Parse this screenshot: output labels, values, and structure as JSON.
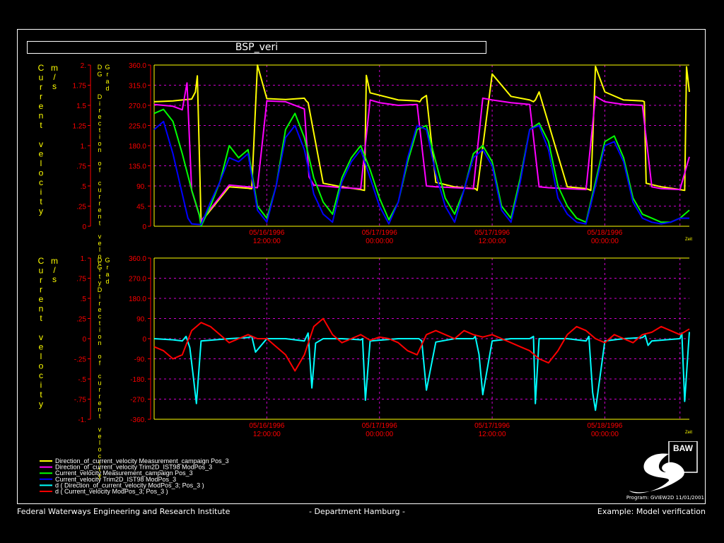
{
  "title": "BSP_veri",
  "footer": {
    "left": "Federal Waterways Engineering and Research Institute",
    "center": "- Department Hamburg -",
    "right": "Example: Model verification"
  },
  "program_line": "Program: GVIEW2D   11/01/2001",
  "logo_text": "BAW",
  "colors": {
    "yellow": "#ffff00",
    "magenta": "#ff00ff",
    "green": "#00ff00",
    "blue": "#0000ff",
    "cyan": "#00ffff",
    "red": "#ff0000",
    "grid": "#cc00cc",
    "frame": "#ffff00",
    "axis_red": "#ff0000"
  },
  "chart_data": [
    {
      "type": "line",
      "left_axis_label": "Current velocity",
      "left_axis_unit": "m/s",
      "right_axis_label": "Direction of current velocity",
      "right_axis_unit": "Grad",
      "right_axis_unit_prefix": "DG",
      "left_ticks": [
        "2.",
        "1.75",
        "1.5",
        "1.25",
        "1.",
        ".75",
        ".5",
        ".25",
        "0"
      ],
      "right_ticks": [
        "360.0",
        "315.0",
        "270.0",
        "225.0",
        "180.0",
        "135.0",
        "90.",
        "45.",
        "0"
      ],
      "ylim_left": [
        0,
        2
      ],
      "ylim_right": [
        0,
        360
      ],
      "xlim_hours": [
        0,
        57
      ],
      "x_ticks": [
        {
          "date": "05/16/1996",
          "time": "12:00:00"
        },
        {
          "date": "05/17/1996",
          "time": "00:00:00"
        },
        {
          "date": "05/17/1996",
          "time": "12:00:00"
        },
        {
          "date": "05/18/1996",
          "time": "00:00:00"
        }
      ],
      "x_axis_tag": "Zeit",
      "grid": true,
      "series": [
        {
          "name": "Direction_of_current_velocity Measurement_campaign Pos_3",
          "axis": "right",
          "color": "yellow",
          "x": [
            0,
            2,
            4,
            4.4,
            4.6,
            5,
            8,
            10,
            10.2,
            10.4,
            11,
            12,
            14,
            16,
            16.2,
            16.4,
            18,
            20,
            22,
            22.4,
            22.6,
            23,
            26,
            28,
            28.3,
            28.5,
            29,
            30,
            32,
            34,
            34.2,
            34.4,
            36,
            38,
            40,
            40.4,
            40.6,
            41,
            44,
            46,
            46.3,
            46.5,
            47,
            48,
            50,
            52,
            52.2,
            52.4,
            54,
            56,
            56.5,
            56.7,
            57
          ],
          "y": [
            278,
            280,
            284,
            300,
            336,
            10,
            88,
            85,
            84,
            84,
            360,
            285,
            283,
            286,
            280,
            276,
            96,
            88,
            82,
            80,
            337,
            298,
            282,
            280,
            278,
            285,
            292,
            98,
            88,
            84,
            84,
            80,
            340,
            290,
            282,
            278,
            282,
            300,
            88,
            84,
            82,
            80,
            357,
            300,
            282,
            280,
            278,
            96,
            88,
            82,
            80,
            356,
            300
          ]
        },
        {
          "name": "Direction_of_current_velocity Trim2D_IST98 ModPos_3",
          "axis": "right",
          "color": "magenta",
          "x": [
            0,
            2,
            3,
            3.5,
            4,
            5,
            8,
            10,
            11,
            12,
            14,
            16,
            16.5,
            17,
            18,
            20,
            22,
            23,
            24,
            26,
            28,
            29,
            30,
            32,
            34,
            35,
            36,
            38,
            40,
            41,
            42,
            44,
            46,
            47,
            48,
            50,
            52,
            53,
            54,
            56,
            57
          ],
          "y": [
            272,
            268,
            260,
            320,
            80,
            12,
            92,
            88,
            86,
            280,
            278,
            262,
            110,
            92,
            90,
            86,
            84,
            282,
            276,
            270,
            272,
            90,
            88,
            86,
            84,
            286,
            282,
            276,
            272,
            88,
            86,
            84,
            82,
            290,
            278,
            272,
            270,
            88,
            84,
            82,
            155
          ]
        },
        {
          "name": "Current_velocity Measurement_campaign Pos_3",
          "axis": "left",
          "color": "green",
          "x": [
            0,
            1,
            2,
            3,
            4,
            4.8,
            5,
            6,
            7,
            8,
            9,
            10,
            11,
            12,
            13,
            14,
            15,
            16,
            17,
            18,
            19,
            20,
            21,
            22,
            23,
            24,
            25,
            26,
            27,
            28,
            29,
            30,
            31,
            32,
            33,
            34,
            35,
            36,
            37,
            38,
            39,
            40,
            41,
            42,
            43,
            44,
            45,
            46,
            47,
            48,
            49,
            50,
            51,
            52,
            53,
            54,
            55,
            56,
            57
          ],
          "y": [
            1.4,
            1.45,
            1.3,
            0.9,
            0.45,
            0.15,
            0.0,
            0.25,
            0.55,
            1.0,
            0.85,
            0.95,
            0.25,
            0.1,
            0.5,
            1.2,
            1.4,
            1.1,
            0.6,
            0.3,
            0.15,
            0.6,
            0.85,
            1.0,
            0.7,
            0.35,
            0.08,
            0.3,
            0.8,
            1.2,
            1.25,
            0.8,
            0.35,
            0.15,
            0.45,
            0.9,
            1.0,
            0.8,
            0.25,
            0.1,
            0.6,
            1.2,
            1.28,
            1.05,
            0.5,
            0.25,
            0.1,
            0.05,
            0.55,
            1.05,
            1.12,
            0.85,
            0.35,
            0.15,
            0.1,
            0.05,
            0.05,
            0.1,
            0.2
          ]
        },
        {
          "name": "Current_velocity Trim2D_IST98 ModPos_3",
          "axis": "left",
          "color": "blue",
          "x": [
            0,
            1,
            2,
            3,
            3.6,
            4,
            5,
            6,
            7,
            8,
            9,
            10,
            11,
            12,
            13,
            14,
            15,
            16,
            17,
            18,
            19,
            20,
            21,
            22,
            23,
            24,
            25,
            26,
            27,
            28,
            29,
            30,
            31,
            32,
            33,
            34,
            35,
            36,
            37,
            38,
            39,
            40,
            41,
            42,
            43,
            44,
            45,
            46,
            47,
            48,
            49,
            50,
            51,
            52,
            53,
            54,
            55,
            56,
            57
          ],
          "y": [
            1.2,
            1.3,
            0.9,
            0.4,
            0.1,
            0.03,
            0.02,
            0.3,
            0.55,
            0.85,
            0.8,
            0.9,
            0.2,
            0.05,
            0.5,
            1.1,
            1.25,
            0.95,
            0.4,
            0.15,
            0.05,
            0.55,
            0.8,
            0.95,
            0.6,
            0.25,
            0.03,
            0.3,
            0.85,
            1.25,
            1.2,
            0.65,
            0.25,
            0.05,
            0.45,
            0.85,
            0.95,
            0.75,
            0.2,
            0.05,
            0.55,
            1.2,
            1.25,
            0.95,
            0.35,
            0.15,
            0.05,
            0.03,
            0.5,
            1.0,
            1.05,
            0.8,
            0.3,
            0.1,
            0.05,
            0.03,
            0.05,
            0.1,
            0.1
          ]
        }
      ]
    },
    {
      "type": "line",
      "left_axis_label": "Current velocity",
      "left_axis_unit": "m/s",
      "right_axis_label": "Direction of current velocity",
      "right_axis_unit": "Grad",
      "right_axis_unit_prefix": "DG",
      "left_ticks": [
        "1.",
        ".75",
        ".5",
        ".25",
        "0",
        "-.25",
        "-.5",
        "-.75",
        "-1."
      ],
      "right_ticks": [
        "360.0",
        "270.0",
        "180.0",
        "90.",
        "0",
        "-90.",
        "-180.",
        "-270.",
        "-360."
      ],
      "ylim_left": [
        -1,
        1
      ],
      "ylim_right": [
        -360,
        360
      ],
      "xlim_hours": [
        0,
        57
      ],
      "x_ticks": [
        {
          "date": "05/16/1996",
          "time": "12:00:00"
        },
        {
          "date": "05/17/1996",
          "time": "00:00:00"
        },
        {
          "date": "05/17/1996",
          "time": "12:00:00"
        },
        {
          "date": "05/18/1996",
          "time": "00:00:00"
        }
      ],
      "x_axis_tag": "Zeit",
      "grid": true,
      "series": [
        {
          "name": "d ( Direction_of_current_velocity ModPos_3; Pos_3 )",
          "axis": "right",
          "color": "cyan",
          "x": [
            0,
            2,
            3,
            3.4,
            3.8,
            4.2,
            4.5,
            5,
            8,
            10,
            10.4,
            10.8,
            11.2,
            12,
            14,
            16,
            16.4,
            16.8,
            17.2,
            18,
            20,
            22,
            22.2,
            22.5,
            23,
            26,
            28,
            28.2,
            28.5,
            29,
            30,
            32,
            34,
            34.2,
            34.6,
            35,
            36,
            38,
            40,
            40.4,
            40.6,
            41,
            44,
            46,
            46.3,
            46.7,
            47,
            48,
            50,
            52,
            52.3,
            52.6,
            53,
            56,
            56.2,
            56.5,
            57
          ],
          "y": [
            0,
            -5,
            -10,
            10,
            -40,
            -180,
            -290,
            -10,
            0,
            5,
            10,
            -60,
            -40,
            0,
            0,
            -10,
            25,
            -220,
            -20,
            0,
            0,
            -5,
            0,
            -275,
            -10,
            0,
            0,
            0,
            -10,
            -230,
            -15,
            0,
            0,
            10,
            -70,
            -250,
            -10,
            0,
            0,
            10,
            -290,
            0,
            0,
            -10,
            10,
            -240,
            -320,
            -10,
            0,
            5,
            15,
            -30,
            -10,
            0,
            25,
            -280,
            30
          ]
        },
        {
          "name": "d ( Current_velocity ModPos_3; Pos_3 )",
          "axis": "left",
          "color": "red",
          "x": [
            0,
            1,
            2,
            3,
            4,
            5,
            6,
            7,
            8,
            9,
            10,
            11,
            12,
            13,
            14,
            15,
            16,
            17,
            18,
            19,
            20,
            21,
            22,
            23,
            24,
            25,
            26,
            27,
            28,
            29,
            30,
            31,
            32,
            33,
            34,
            35,
            36,
            37,
            38,
            39,
            40,
            41,
            42,
            43,
            44,
            45,
            46,
            47,
            48,
            49,
            50,
            51,
            52,
            53,
            54,
            55,
            56,
            57
          ],
          "y": [
            -0.1,
            -0.15,
            -0.25,
            -0.2,
            0.1,
            0.2,
            0.15,
            0.05,
            -0.05,
            0.0,
            0.05,
            0.0,
            0.0,
            -0.1,
            -0.2,
            -0.4,
            -0.2,
            0.15,
            0.25,
            0.05,
            -0.05,
            0.0,
            0.05,
            -0.02,
            0.02,
            0.0,
            -0.05,
            -0.15,
            -0.2,
            0.05,
            0.1,
            0.05,
            0.0,
            0.1,
            0.05,
            0.02,
            0.05,
            0.0,
            -0.05,
            -0.1,
            -0.15,
            -0.25,
            -0.3,
            -0.15,
            0.05,
            0.15,
            0.1,
            0.0,
            -0.05,
            0.05,
            0.0,
            -0.05,
            0.05,
            0.08,
            0.15,
            0.1,
            0.05,
            0.12
          ]
        }
      ]
    }
  ],
  "legend": [
    {
      "label": "Direction_of_current_velocity Measurement_campaign Pos_3",
      "color": "yellow"
    },
    {
      "label": "Direction_of_current_velocity Trim2D_IST98 ModPos_3",
      "color": "magenta"
    },
    {
      "label": "Current_velocity Measurement_campaign Pos_3",
      "color": "green"
    },
    {
      "label": "Current_velocity Trim2D_IST98 ModPos_3",
      "color": "blue"
    },
    {
      "label": "d ( Direction_of_current_velocity ModPos_3; Pos_3 )",
      "color": "cyan"
    },
    {
      "label": "d ( Current_velocity ModPos_3; Pos_3 )",
      "color": "red"
    }
  ]
}
